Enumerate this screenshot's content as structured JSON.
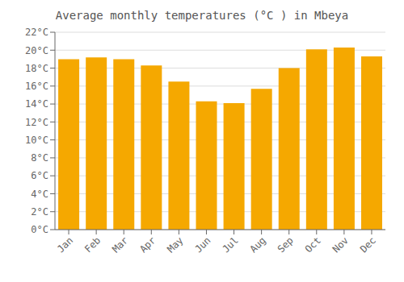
{
  "chart_data": {
    "type": "bar",
    "title": "Average monthly temperatures (°C ) in Mbeya",
    "categories": [
      "Jan",
      "Feb",
      "Mar",
      "Apr",
      "May",
      "Jun",
      "Jul",
      "Aug",
      "Sep",
      "Oct",
      "Nov",
      "Dec"
    ],
    "values": [
      19.0,
      19.2,
      19.0,
      18.3,
      16.5,
      14.3,
      14.1,
      15.7,
      18.0,
      20.1,
      20.3,
      19.3
    ],
    "color": "#F5A800",
    "ylim": [
      0,
      22
    ],
    "yticks": [
      {
        "value": 0,
        "label": "0°C"
      },
      {
        "value": 2,
        "label": "2°C"
      },
      {
        "value": 4,
        "label": "4°C"
      },
      {
        "value": 6,
        "label": "6°C"
      },
      {
        "value": 8,
        "label": "8°C"
      },
      {
        "value": 10,
        "label": "10°C"
      },
      {
        "value": 12,
        "label": "12°C"
      },
      {
        "value": 14,
        "label": "14°C"
      },
      {
        "value": 16,
        "label": "16°C"
      },
      {
        "value": 18,
        "label": "18°C"
      },
      {
        "value": 20,
        "label": "20°C"
      },
      {
        "value": 22,
        "label": "22°C"
      }
    ],
    "grid": true
  }
}
